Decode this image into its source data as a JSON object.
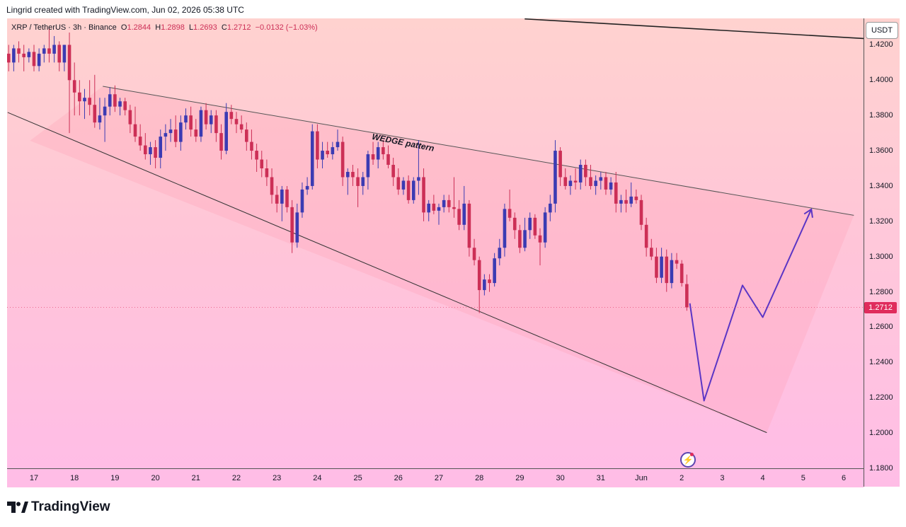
{
  "header": {
    "attribution": "Lingrid created with TradingView.com, Jun 02, 2026 05:38 UTC"
  },
  "legend": {
    "symbol": "XRP / TetherUS · 3h · Binance",
    "open_label": "O",
    "open": "1.2844",
    "high_label": "H",
    "high": "1.2898",
    "low_label": "L",
    "low": "1.2693",
    "close_label": "C",
    "close": "1.2712",
    "change": "−0.0132 (−1.03%)"
  },
  "currency_button": "USDT",
  "last_price": "1.2712",
  "annotation": "WEDGE pattern",
  "footer": {
    "brand": "TradingView"
  },
  "colors": {
    "up": "#3b3bb3",
    "down": "#cc2f56",
    "projection": "#5b35c5",
    "pricetag": "#e02b5c"
  },
  "chart_data": {
    "type": "candlestick",
    "ylim": [
      1.18,
      1.435
    ],
    "y_ticks": [
      "1.4200",
      "1.4000",
      "1.3800",
      "1.3600",
      "1.3400",
      "1.3200",
      "1.3000",
      "1.2800",
      "1.2600",
      "1.2400",
      "1.2200",
      "1.2000",
      "1.1800"
    ],
    "x_ticks": [
      "17",
      "18",
      "19",
      "20",
      "21",
      "22",
      "23",
      "24",
      "25",
      "26",
      "27",
      "28",
      "29",
      "30",
      "31",
      "Jun",
      "2",
      "3",
      "4",
      "5",
      "6"
    ],
    "x_tick_days": [
      17,
      18,
      19,
      20,
      21,
      22,
      23,
      24,
      25,
      26,
      27,
      28,
      29,
      30,
      31,
      32,
      33,
      34,
      35,
      36,
      37
    ],
    "x_range_days": [
      16.35,
      37.5
    ],
    "candles": [
      {
        "day": 16.25,
        "o": 1.412,
        "h": 1.418,
        "l": 1.395,
        "c": 1.415
      },
      {
        "day": 16.375,
        "o": 1.415,
        "h": 1.42,
        "l": 1.405,
        "c": 1.41
      },
      {
        "day": 16.5,
        "o": 1.41,
        "h": 1.42,
        "l": 1.405,
        "c": 1.418
      },
      {
        "day": 16.625,
        "o": 1.418,
        "h": 1.422,
        "l": 1.41,
        "c": 1.415
      },
      {
        "day": 16.75,
        "o": 1.415,
        "h": 1.42,
        "l": 1.405,
        "c": 1.413
      },
      {
        "day": 16.875,
        "o": 1.413,
        "h": 1.418,
        "l": 1.41,
        "c": 1.416
      },
      {
        "day": 17.0,
        "o": 1.416,
        "h": 1.42,
        "l": 1.405,
        "c": 1.408
      },
      {
        "day": 17.125,
        "o": 1.408,
        "h": 1.418,
        "l": 1.405,
        "c": 1.415
      },
      {
        "day": 17.25,
        "o": 1.415,
        "h": 1.42,
        "l": 1.41,
        "c": 1.418
      },
      {
        "day": 17.375,
        "o": 1.418,
        "h": 1.43,
        "l": 1.41,
        "c": 1.415
      },
      {
        "day": 17.5,
        "o": 1.415,
        "h": 1.425,
        "l": 1.41,
        "c": 1.42
      },
      {
        "day": 17.625,
        "o": 1.42,
        "h": 1.422,
        "l": 1.405,
        "c": 1.41
      },
      {
        "day": 17.75,
        "o": 1.41,
        "h": 1.42,
        "l": 1.405,
        "c": 1.42
      },
      {
        "day": 17.875,
        "o": 1.42,
        "h": 1.427,
        "l": 1.37,
        "c": 1.4
      },
      {
        "day": 18.0,
        "o": 1.4,
        "h": 1.41,
        "l": 1.38,
        "c": 1.393
      },
      {
        "day": 18.125,
        "o": 1.393,
        "h": 1.4,
        "l": 1.38,
        "c": 1.388
      },
      {
        "day": 18.25,
        "o": 1.388,
        "h": 1.395,
        "l": 1.378,
        "c": 1.39
      },
      {
        "day": 18.375,
        "o": 1.39,
        "h": 1.4,
        "l": 1.38,
        "c": 1.386
      },
      {
        "day": 18.5,
        "o": 1.386,
        "h": 1.403,
        "l": 1.373,
        "c": 1.376
      },
      {
        "day": 18.625,
        "o": 1.376,
        "h": 1.39,
        "l": 1.372,
        "c": 1.38
      },
      {
        "day": 18.75,
        "o": 1.38,
        "h": 1.39,
        "l": 1.365,
        "c": 1.385
      },
      {
        "day": 18.875,
        "o": 1.385,
        "h": 1.396,
        "l": 1.38,
        "c": 1.392
      },
      {
        "day": 19.0,
        "o": 1.392,
        "h": 1.397,
        "l": 1.382,
        "c": 1.385
      },
      {
        "day": 19.125,
        "o": 1.385,
        "h": 1.39,
        "l": 1.38,
        "c": 1.388
      },
      {
        "day": 19.25,
        "o": 1.388,
        "h": 1.39,
        "l": 1.38,
        "c": 1.383
      },
      {
        "day": 19.375,
        "o": 1.383,
        "h": 1.386,
        "l": 1.37,
        "c": 1.375
      },
      {
        "day": 19.5,
        "o": 1.375,
        "h": 1.385,
        "l": 1.365,
        "c": 1.368
      },
      {
        "day": 19.625,
        "o": 1.368,
        "h": 1.375,
        "l": 1.36,
        "c": 1.363
      },
      {
        "day": 19.75,
        "o": 1.363,
        "h": 1.37,
        "l": 1.355,
        "c": 1.358
      },
      {
        "day": 19.875,
        "o": 1.358,
        "h": 1.365,
        "l": 1.352,
        "c": 1.362
      },
      {
        "day": 20.0,
        "o": 1.362,
        "h": 1.366,
        "l": 1.35,
        "c": 1.356
      },
      {
        "day": 20.125,
        "o": 1.356,
        "h": 1.372,
        "l": 1.35,
        "c": 1.368
      },
      {
        "day": 20.25,
        "o": 1.368,
        "h": 1.375,
        "l": 1.36,
        "c": 1.37
      },
      {
        "day": 20.375,
        "o": 1.37,
        "h": 1.378,
        "l": 1.365,
        "c": 1.372
      },
      {
        "day": 20.5,
        "o": 1.372,
        "h": 1.38,
        "l": 1.362,
        "c": 1.365
      },
      {
        "day": 20.625,
        "o": 1.365,
        "h": 1.38,
        "l": 1.36,
        "c": 1.376
      },
      {
        "day": 20.75,
        "o": 1.376,
        "h": 1.384,
        "l": 1.372,
        "c": 1.38
      },
      {
        "day": 20.875,
        "o": 1.38,
        "h": 1.385,
        "l": 1.368,
        "c": 1.372
      },
      {
        "day": 21.0,
        "o": 1.372,
        "h": 1.378,
        "l": 1.365,
        "c": 1.368
      },
      {
        "day": 21.125,
        "o": 1.368,
        "h": 1.385,
        "l": 1.365,
        "c": 1.383
      },
      {
        "day": 21.25,
        "o": 1.383,
        "h": 1.387,
        "l": 1.372,
        "c": 1.375
      },
      {
        "day": 21.375,
        "o": 1.375,
        "h": 1.383,
        "l": 1.37,
        "c": 1.38
      },
      {
        "day": 21.5,
        "o": 1.38,
        "h": 1.383,
        "l": 1.365,
        "c": 1.37
      },
      {
        "day": 21.625,
        "o": 1.37,
        "h": 1.375,
        "l": 1.355,
        "c": 1.36
      },
      {
        "day": 21.75,
        "o": 1.36,
        "h": 1.387,
        "l": 1.358,
        "c": 1.382
      },
      {
        "day": 21.875,
        "o": 1.382,
        "h": 1.386,
        "l": 1.375,
        "c": 1.378
      },
      {
        "day": 22.0,
        "o": 1.378,
        "h": 1.382,
        "l": 1.37,
        "c": 1.375
      },
      {
        "day": 22.125,
        "o": 1.375,
        "h": 1.38,
        "l": 1.37,
        "c": 1.372
      },
      {
        "day": 22.25,
        "o": 1.372,
        "h": 1.376,
        "l": 1.36,
        "c": 1.365
      },
      {
        "day": 22.375,
        "o": 1.365,
        "h": 1.372,
        "l": 1.355,
        "c": 1.36
      },
      {
        "day": 22.5,
        "o": 1.36,
        "h": 1.364,
        "l": 1.348,
        "c": 1.355
      },
      {
        "day": 22.625,
        "o": 1.355,
        "h": 1.36,
        "l": 1.345,
        "c": 1.35
      },
      {
        "day": 22.75,
        "o": 1.35,
        "h": 1.355,
        "l": 1.34,
        "c": 1.345
      },
      {
        "day": 22.875,
        "o": 1.345,
        "h": 1.35,
        "l": 1.33,
        "c": 1.335
      },
      {
        "day": 23.0,
        "o": 1.335,
        "h": 1.34,
        "l": 1.325,
        "c": 1.33
      },
      {
        "day": 23.125,
        "o": 1.33,
        "h": 1.34,
        "l": 1.32,
        "c": 1.338
      },
      {
        "day": 23.25,
        "o": 1.338,
        "h": 1.34,
        "l": 1.325,
        "c": 1.328
      },
      {
        "day": 23.375,
        "o": 1.328,
        "h": 1.332,
        "l": 1.302,
        "c": 1.308
      },
      {
        "day": 23.5,
        "o": 1.308,
        "h": 1.33,
        "l": 1.305,
        "c": 1.325
      },
      {
        "day": 23.625,
        "o": 1.325,
        "h": 1.342,
        "l": 1.322,
        "c": 1.338
      },
      {
        "day": 23.75,
        "o": 1.338,
        "h": 1.345,
        "l": 1.335,
        "c": 1.34
      },
      {
        "day": 23.875,
        "o": 1.34,
        "h": 1.375,
        "l": 1.338,
        "c": 1.371
      },
      {
        "day": 24.0,
        "o": 1.371,
        "h": 1.375,
        "l": 1.35,
        "c": 1.355
      },
      {
        "day": 24.125,
        "o": 1.355,
        "h": 1.365,
        "l": 1.35,
        "c": 1.36
      },
      {
        "day": 24.25,
        "o": 1.36,
        "h": 1.365,
        "l": 1.356,
        "c": 1.358
      },
      {
        "day": 24.375,
        "o": 1.358,
        "h": 1.365,
        "l": 1.355,
        "c": 1.362
      },
      {
        "day": 24.5,
        "o": 1.362,
        "h": 1.372,
        "l": 1.36,
        "c": 1.365
      },
      {
        "day": 24.625,
        "o": 1.365,
        "h": 1.368,
        "l": 1.34,
        "c": 1.345
      },
      {
        "day": 24.75,
        "o": 1.345,
        "h": 1.35,
        "l": 1.335,
        "c": 1.348
      },
      {
        "day": 24.875,
        "o": 1.348,
        "h": 1.352,
        "l": 1.34,
        "c": 1.345
      },
      {
        "day": 25.0,
        "o": 1.345,
        "h": 1.35,
        "l": 1.328,
        "c": 1.34
      },
      {
        "day": 25.125,
        "o": 1.34,
        "h": 1.348,
        "l": 1.335,
        "c": 1.345
      },
      {
        "day": 25.25,
        "o": 1.345,
        "h": 1.36,
        "l": 1.338,
        "c": 1.358
      },
      {
        "day": 25.375,
        "o": 1.358,
        "h": 1.365,
        "l": 1.352,
        "c": 1.355
      },
      {
        "day": 25.5,
        "o": 1.355,
        "h": 1.365,
        "l": 1.35,
        "c": 1.362
      },
      {
        "day": 25.625,
        "o": 1.362,
        "h": 1.366,
        "l": 1.355,
        "c": 1.358
      },
      {
        "day": 25.75,
        "o": 1.358,
        "h": 1.363,
        "l": 1.35,
        "c": 1.352
      },
      {
        "day": 25.875,
        "o": 1.352,
        "h": 1.356,
        "l": 1.34,
        "c": 1.345
      },
      {
        "day": 26.0,
        "o": 1.345,
        "h": 1.35,
        "l": 1.335,
        "c": 1.338
      },
      {
        "day": 26.125,
        "o": 1.338,
        "h": 1.345,
        "l": 1.335,
        "c": 1.343
      },
      {
        "day": 26.25,
        "o": 1.343,
        "h": 1.346,
        "l": 1.33,
        "c": 1.332
      },
      {
        "day": 26.375,
        "o": 1.332,
        "h": 1.345,
        "l": 1.33,
        "c": 1.343
      },
      {
        "day": 26.5,
        "o": 1.343,
        "h": 1.366,
        "l": 1.335,
        "c": 1.345
      },
      {
        "day": 26.625,
        "o": 1.345,
        "h": 1.35,
        "l": 1.32,
        "c": 1.325
      },
      {
        "day": 26.75,
        "o": 1.325,
        "h": 1.332,
        "l": 1.32,
        "c": 1.33
      },
      {
        "day": 26.875,
        "o": 1.33,
        "h": 1.335,
        "l": 1.324,
        "c": 1.326
      },
      {
        "day": 27.0,
        "o": 1.326,
        "h": 1.33,
        "l": 1.318,
        "c": 1.328
      },
      {
        "day": 27.125,
        "o": 1.328,
        "h": 1.335,
        "l": 1.325,
        "c": 1.332
      },
      {
        "day": 27.25,
        "o": 1.332,
        "h": 1.335,
        "l": 1.325,
        "c": 1.328
      },
      {
        "day": 27.375,
        "o": 1.328,
        "h": 1.345,
        "l": 1.322,
        "c": 1.327
      },
      {
        "day": 27.5,
        "o": 1.327,
        "h": 1.332,
        "l": 1.315,
        "c": 1.318
      },
      {
        "day": 27.625,
        "o": 1.318,
        "h": 1.34,
        "l": 1.315,
        "c": 1.33
      },
      {
        "day": 27.75,
        "o": 1.33,
        "h": 1.332,
        "l": 1.3,
        "c": 1.305
      },
      {
        "day": 27.875,
        "o": 1.305,
        "h": 1.31,
        "l": 1.295,
        "c": 1.298
      },
      {
        "day": 28.0,
        "o": 1.298,
        "h": 1.3,
        "l": 1.268,
        "c": 1.281
      },
      {
        "day": 28.125,
        "o": 1.281,
        "h": 1.29,
        "l": 1.278,
        "c": 1.287
      },
      {
        "day": 28.25,
        "o": 1.287,
        "h": 1.29,
        "l": 1.28,
        "c": 1.285
      },
      {
        "day": 28.375,
        "o": 1.285,
        "h": 1.302,
        "l": 1.283,
        "c": 1.299
      },
      {
        "day": 28.5,
        "o": 1.299,
        "h": 1.31,
        "l": 1.295,
        "c": 1.305
      },
      {
        "day": 28.625,
        "o": 1.305,
        "h": 1.33,
        "l": 1.3,
        "c": 1.327
      },
      {
        "day": 28.75,
        "o": 1.327,
        "h": 1.338,
        "l": 1.32,
        "c": 1.322
      },
      {
        "day": 28.875,
        "o": 1.322,
        "h": 1.325,
        "l": 1.31,
        "c": 1.315
      },
      {
        "day": 29.0,
        "o": 1.315,
        "h": 1.318,
        "l": 1.302,
        "c": 1.305
      },
      {
        "day": 29.125,
        "o": 1.305,
        "h": 1.322,
        "l": 1.303,
        "c": 1.315
      },
      {
        "day": 29.25,
        "o": 1.315,
        "h": 1.325,
        "l": 1.31,
        "c": 1.322
      },
      {
        "day": 29.375,
        "o": 1.322,
        "h": 1.324,
        "l": 1.31,
        "c": 1.312
      },
      {
        "day": 29.5,
        "o": 1.312,
        "h": 1.316,
        "l": 1.295,
        "c": 1.308
      },
      {
        "day": 29.625,
        "o": 1.308,
        "h": 1.328,
        "l": 1.305,
        "c": 1.325
      },
      {
        "day": 29.75,
        "o": 1.325,
        "h": 1.335,
        "l": 1.32,
        "c": 1.33
      },
      {
        "day": 29.875,
        "o": 1.33,
        "h": 1.366,
        "l": 1.325,
        "c": 1.36
      },
      {
        "day": 30.0,
        "o": 1.36,
        "h": 1.362,
        "l": 1.34,
        "c": 1.345
      },
      {
        "day": 30.125,
        "o": 1.345,
        "h": 1.35,
        "l": 1.338,
        "c": 1.34
      },
      {
        "day": 30.25,
        "o": 1.34,
        "h": 1.346,
        "l": 1.335,
        "c": 1.343
      },
      {
        "day": 30.375,
        "o": 1.343,
        "h": 1.35,
        "l": 1.338,
        "c": 1.342
      },
      {
        "day": 30.5,
        "o": 1.342,
        "h": 1.355,
        "l": 1.338,
        "c": 1.352
      },
      {
        "day": 30.625,
        "o": 1.352,
        "h": 1.355,
        "l": 1.34,
        "c": 1.345
      },
      {
        "day": 30.75,
        "o": 1.345,
        "h": 1.352,
        "l": 1.338,
        "c": 1.34
      },
      {
        "day": 30.875,
        "o": 1.34,
        "h": 1.346,
        "l": 1.335,
        "c": 1.343
      },
      {
        "day": 31.0,
        "o": 1.343,
        "h": 1.348,
        "l": 1.338,
        "c": 1.345
      },
      {
        "day": 31.125,
        "o": 1.345,
        "h": 1.348,
        "l": 1.335,
        "c": 1.338
      },
      {
        "day": 31.25,
        "o": 1.338,
        "h": 1.345,
        "l": 1.335,
        "c": 1.342
      },
      {
        "day": 31.375,
        "o": 1.342,
        "h": 1.348,
        "l": 1.325,
        "c": 1.33
      },
      {
        "day": 31.5,
        "o": 1.33,
        "h": 1.335,
        "l": 1.325,
        "c": 1.332
      },
      {
        "day": 31.625,
        "o": 1.332,
        "h": 1.338,
        "l": 1.325,
        "c": 1.33
      },
      {
        "day": 31.75,
        "o": 1.33,
        "h": 1.342,
        "l": 1.328,
        "c": 1.334
      },
      {
        "day": 31.875,
        "o": 1.334,
        "h": 1.338,
        "l": 1.33,
        "c": 1.332
      },
      {
        "day": 32.0,
        "o": 1.332,
        "h": 1.335,
        "l": 1.315,
        "c": 1.318
      },
      {
        "day": 32.125,
        "o": 1.318,
        "h": 1.322,
        "l": 1.3,
        "c": 1.305
      },
      {
        "day": 32.25,
        "o": 1.305,
        "h": 1.31,
        "l": 1.298,
        "c": 1.3
      },
      {
        "day": 32.375,
        "o": 1.3,
        "h": 1.305,
        "l": 1.285,
        "c": 1.288
      },
      {
        "day": 32.5,
        "o": 1.288,
        "h": 1.305,
        "l": 1.285,
        "c": 1.3
      },
      {
        "day": 32.625,
        "o": 1.3,
        "h": 1.304,
        "l": 1.28,
        "c": 1.285
      },
      {
        "day": 32.75,
        "o": 1.285,
        "h": 1.302,
        "l": 1.282,
        "c": 1.298
      },
      {
        "day": 32.875,
        "o": 1.298,
        "h": 1.302,
        "l": 1.293,
        "c": 1.296
      },
      {
        "day": 33.0,
        "o": 1.296,
        "h": 1.298,
        "l": 1.283,
        "c": 1.285
      },
      {
        "day": 33.125,
        "o": 1.2844,
        "h": 1.2898,
        "l": 1.2693,
        "c": 1.2712
      }
    ],
    "wedge_upper": [
      [
        18.7,
        1.3965
      ],
      [
        37.25,
        1.3234
      ]
    ],
    "wedge_lower": [
      [
        16.35,
        1.3817
      ],
      [
        35.1,
        1.2002
      ]
    ],
    "wedge_fill_right_top": [
      37.25,
      1.3234
    ],
    "wedge_fill_right_bottom": [
      35.1,
      1.2002
    ],
    "resistance_line": [
      [
        29.12,
        1.4347
      ],
      [
        37.5,
        1.4236
      ]
    ],
    "projection_path": [
      [
        33.2,
        1.2735
      ],
      [
        33.55,
        1.2183
      ],
      [
        34.5,
        1.2837
      ],
      [
        35.0,
        1.2656
      ],
      [
        36.2,
        1.3268
      ]
    ]
  }
}
